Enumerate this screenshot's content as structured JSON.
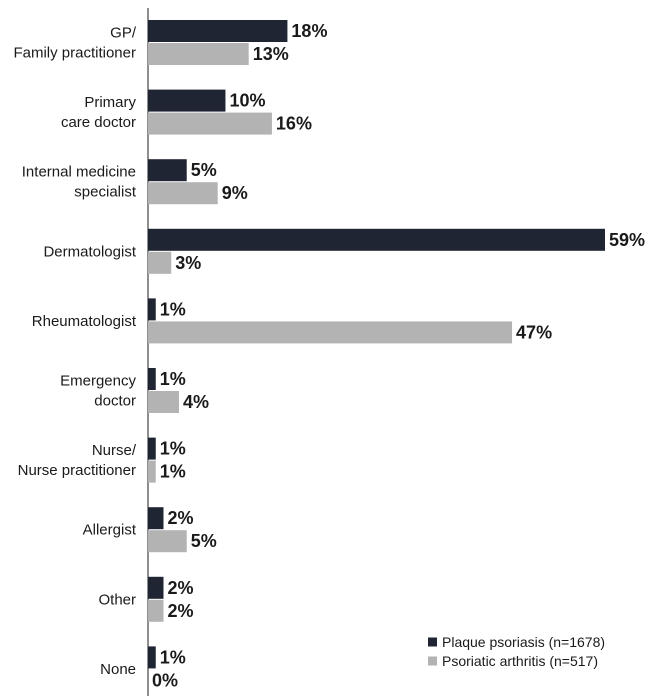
{
  "chart_data": {
    "type": "bar",
    "orientation": "horizontal",
    "categories": [
      [
        "GP/",
        "Family practitioner"
      ],
      [
        "Primary",
        "care doctor"
      ],
      [
        "Internal medicine",
        "specialist"
      ],
      [
        "Dermatologist"
      ],
      [
        "Rheumatologist"
      ],
      [
        "Emergency",
        "doctor"
      ],
      [
        "Nurse/",
        "Nurse practitioner"
      ],
      [
        "Allergist"
      ],
      [
        "Other"
      ],
      [
        "None"
      ]
    ],
    "series": [
      {
        "name": "Plaque psoriasis (n=1678)",
        "color": "#1f2532",
        "values": [
          18,
          10,
          5,
          59,
          1,
          1,
          1,
          2,
          2,
          1
        ],
        "labels": [
          "18%",
          "10%",
          "5%",
          "59%",
          "1%",
          "1%",
          "1%",
          "2%",
          "2%",
          "1%"
        ]
      },
      {
        "name": "Psoriatic arthritis (n=517)",
        "color": "#b3b3b3",
        "values": [
          13,
          16,
          9,
          3,
          47,
          4,
          1,
          5,
          2,
          0
        ],
        "labels": [
          "13%",
          "16%",
          "9%",
          "3%",
          "47%",
          "4%",
          "1%",
          "5%",
          "2%",
          "0%"
        ]
      }
    ],
    "xlim": [
      0,
      59
    ],
    "title": "",
    "xlabel": "",
    "ylabel": "",
    "grid": false,
    "legend_position": "bottom-right"
  }
}
